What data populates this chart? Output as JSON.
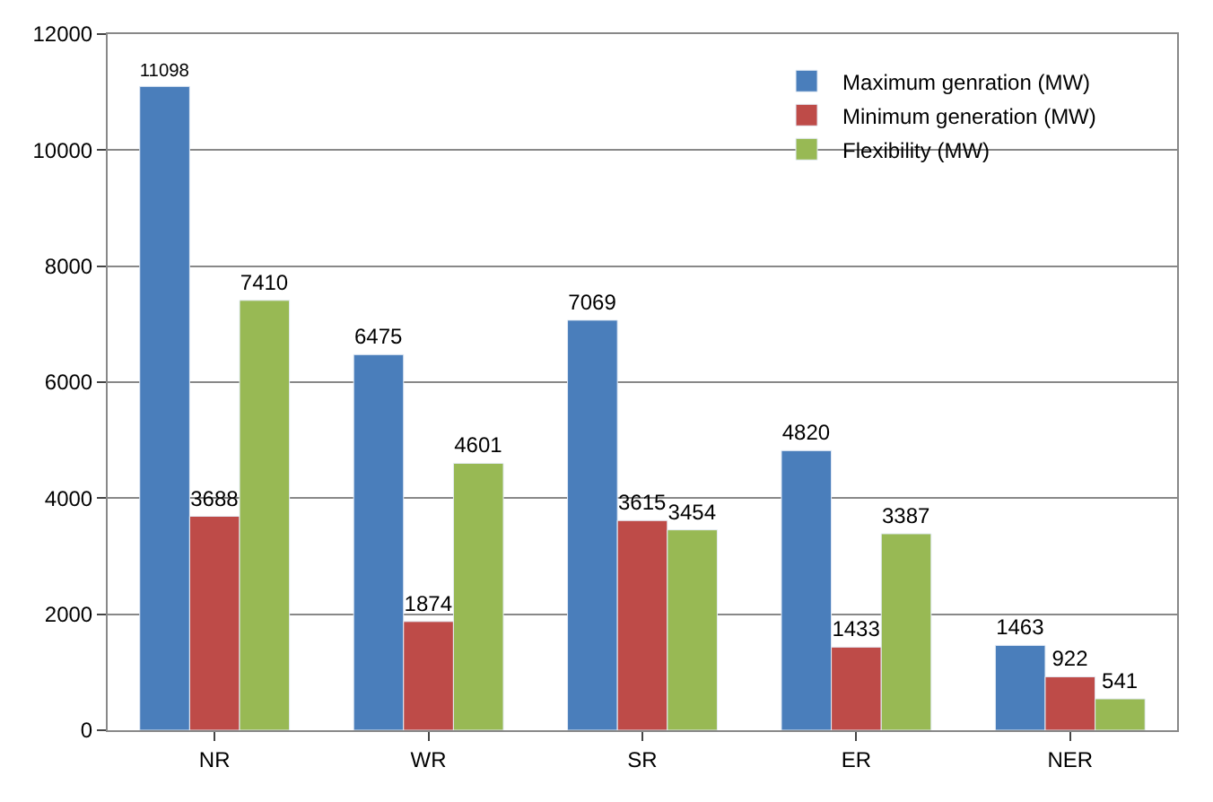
{
  "chart_data": {
    "type": "bar",
    "categories": [
      "NR",
      "WR",
      "SR",
      "ER",
      "NER"
    ],
    "series": [
      {
        "name": "Maximum genration (MW)",
        "color": "#4a7ebb",
        "values": [
          11098,
          6475,
          7069,
          4820,
          1463
        ]
      },
      {
        "name": "Minimum generation (MW)",
        "color": "#be4b48",
        "values": [
          3688,
          1874,
          3615,
          1433,
          922
        ]
      },
      {
        "name": "Flexibility (MW)",
        "color": "#98b954",
        "values": [
          7410,
          4601,
          3454,
          3387,
          541
        ]
      }
    ],
    "ylim": [
      0,
      12000
    ],
    "yticks": [
      0,
      2000,
      4000,
      6000,
      8000,
      10000,
      12000
    ],
    "grid": "y",
    "legend": "top right",
    "data_labels": true
  }
}
